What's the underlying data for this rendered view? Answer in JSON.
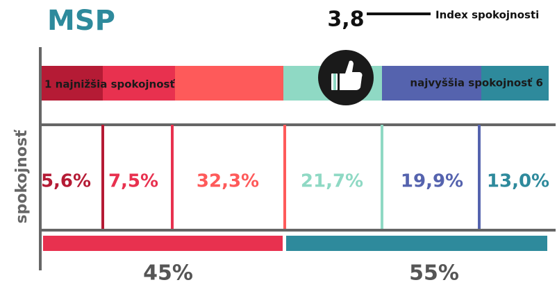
{
  "title": "MSP",
  "index": {
    "value": "3,8",
    "label": "Index spokojnosti"
  },
  "scale": {
    "low": "1 najnižšia spokojnosť",
    "high": "najvyššia spokojnosť 6"
  },
  "axis_label": "spokojnosť",
  "percentages": [
    "5,6%",
    "7,5%",
    "32,3%",
    "21,7%",
    "19,9%",
    "13,0%"
  ],
  "groups": [
    "45%",
    "55%"
  ]
}
